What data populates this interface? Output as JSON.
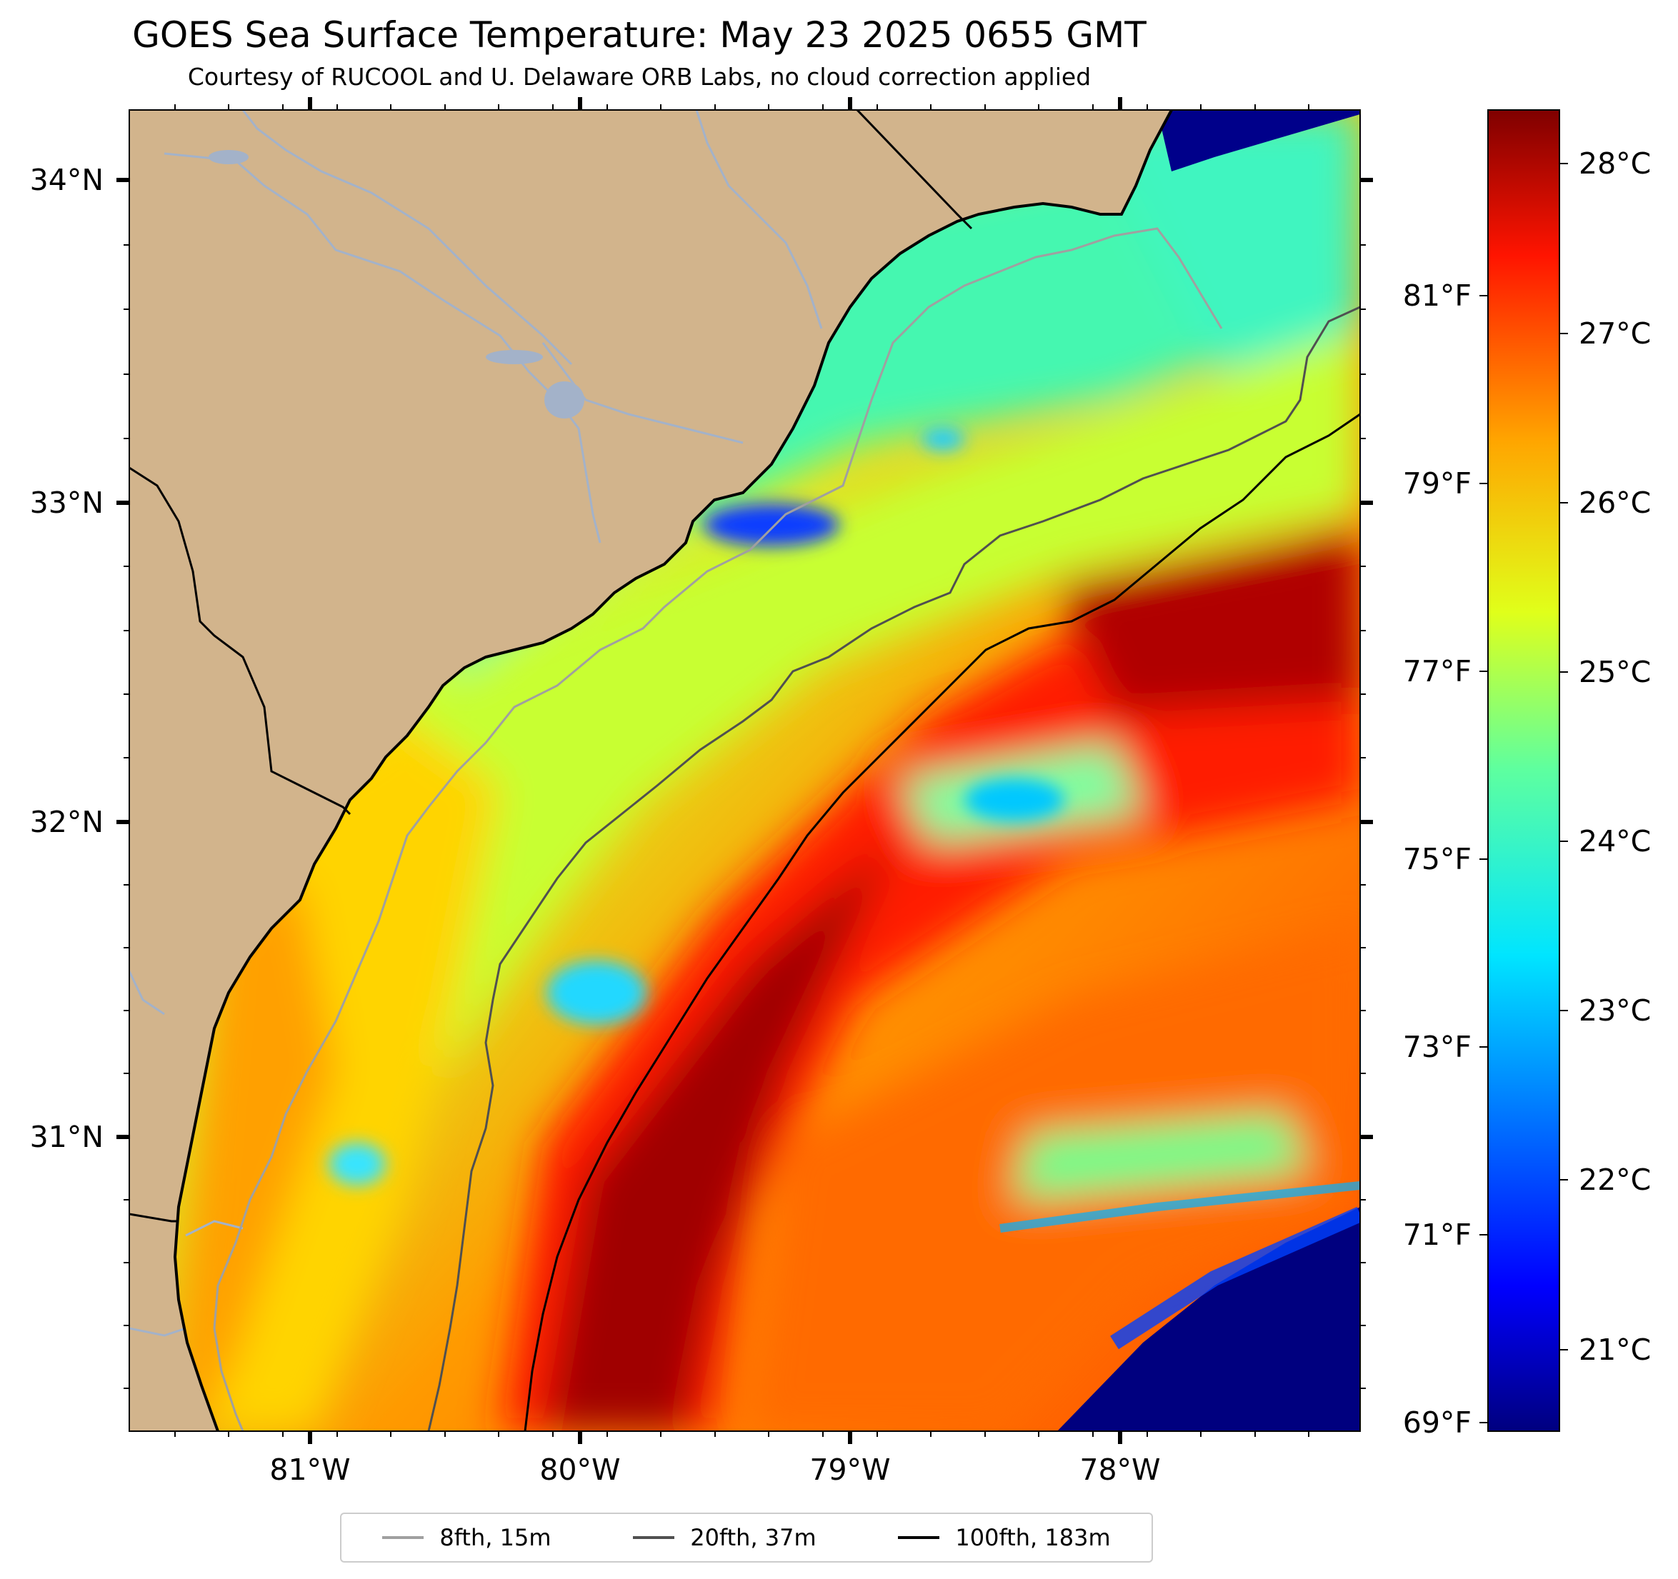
{
  "title": "GOES Sea Surface Temperature: May 23 2025 0655 GMT",
  "subtitle": "Courtesy of RUCOOL and U. Delaware ORB Labs, no cloud correction applied",
  "map": {
    "lon_labels": [
      "81°W",
      "80°W",
      "79°W",
      "78°W"
    ],
    "lat_labels": [
      "34°N",
      "33°N",
      "32°N",
      "31°N"
    ],
    "land_color": "#d2b48c",
    "river_color": "#a3b2c9"
  },
  "colorbar": {
    "celsius_labels": [
      "28°C",
      "27°C",
      "26°C",
      "25°C",
      "24°C",
      "23°C",
      "22°C",
      "21°C"
    ],
    "fahrenheit_labels": [
      "81°F",
      "79°F",
      "77°F",
      "75°F",
      "73°F",
      "71°F",
      "69°F"
    ],
    "colormap": "jet",
    "range_c": [
      20.5,
      28.3
    ]
  },
  "legend": {
    "items": [
      {
        "label": "8fth, 15m",
        "color": "#a0a0a0"
      },
      {
        "label": "20fth, 37m",
        "color": "#505050"
      },
      {
        "label": "100fth, 183m",
        "color": "#000000"
      }
    ]
  }
}
